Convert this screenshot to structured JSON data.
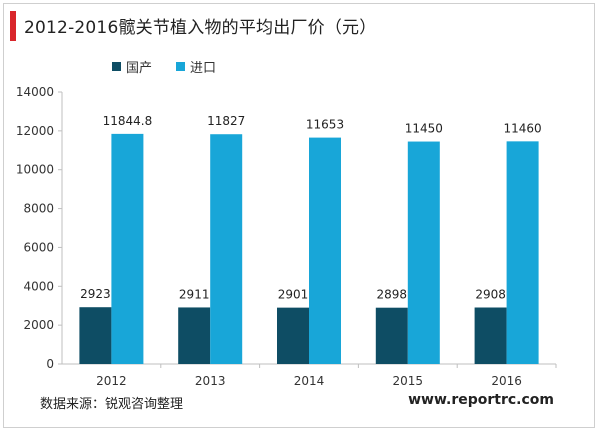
{
  "title": "2012-2016髋关节植入物的平均出厂价（元）",
  "legend": [
    {
      "name": "国产",
      "color": "#0e4d64"
    },
    {
      "name": "进口",
      "color": "#18a6d8"
    }
  ],
  "footer": {
    "source": "数据来源：锐观咨询整理",
    "website": "www.reportrc.com"
  },
  "colors": {
    "accent": "#d9262b",
    "domestic": "#0e4d64",
    "imported": "#18a6d8"
  },
  "chart_data": {
    "type": "bar",
    "categories": [
      "2012",
      "2013",
      "2014",
      "2015",
      "2016"
    ],
    "series": [
      {
        "name": "国产",
        "values": [
          2923,
          2911,
          2901,
          2898,
          2908
        ],
        "labels": [
          "2923",
          "2911",
          "2901",
          "2898",
          "2908"
        ]
      },
      {
        "name": "进口",
        "values": [
          11844.8,
          11827,
          11653,
          11450,
          11460
        ],
        "labels": [
          "11844.8",
          "11827",
          "11653",
          "11450",
          "11460"
        ]
      }
    ],
    "ylim": [
      0,
      14000
    ],
    "yticks": [
      0,
      2000,
      4000,
      6000,
      8000,
      10000,
      12000,
      14000
    ],
    "grid": false
  }
}
